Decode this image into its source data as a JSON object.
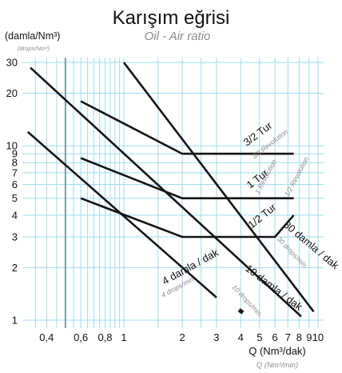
{
  "chart_data": {
    "type": "line",
    "title": "Karışım eğrisi",
    "subtitle": "Oil - Air ratio",
    "ylabel": "(damla/Nm³)",
    "ylabel_sub": "(drops/Nm³)",
    "xlabel": "Q (Nm³/dak)",
    "xlabel_sub": "Q (Nm³/min)",
    "x_scale": "log",
    "y_scale": "log",
    "xlim": [
      0.3,
      11
    ],
    "ylim": [
      0.9,
      32
    ],
    "x_ticks": [
      {
        "value": 0.4,
        "label": "0,4"
      },
      {
        "value": 0.6,
        "label": "0,6"
      },
      {
        "value": 0.8,
        "label": "0,8"
      },
      {
        "value": 1,
        "label": "1"
      },
      {
        "value": 2,
        "label": "2"
      },
      {
        "value": 3,
        "label": "3"
      },
      {
        "value": 4,
        "label": "4"
      },
      {
        "value": 5,
        "label": "5"
      },
      {
        "value": 6,
        "label": "6"
      },
      {
        "value": 7,
        "label": "7"
      },
      {
        "value": 8,
        "label": "8"
      },
      {
        "value": 9,
        "label": "9"
      },
      {
        "value": 10,
        "label": "10"
      }
    ],
    "y_ticks": [
      {
        "value": 1,
        "label": "1"
      },
      {
        "value": 2,
        "label": "2"
      },
      {
        "value": 3,
        "label": "3"
      },
      {
        "value": 4,
        "label": "4"
      },
      {
        "value": 5,
        "label": "5"
      },
      {
        "value": 6,
        "label": "6"
      },
      {
        "value": 7,
        "label": "7"
      },
      {
        "value": 8,
        "label": "8"
      },
      {
        "value": 9,
        "label": "9"
      },
      {
        "value": 10,
        "label": "10"
      },
      {
        "value": 20,
        "label": "20"
      },
      {
        "value": 30,
        "label": "30"
      }
    ],
    "x_minor_gridlines": [
      0.35,
      0.45,
      0.55,
      0.65,
      0.7,
      0.75,
      0.85,
      0.9,
      0.95,
      1.5,
      2.5
    ],
    "highlight_gridline_x": 0.5,
    "grid": true,
    "series": [
      {
        "name": "4 damla / dak",
        "name_sub": "4 drops/min.",
        "x": [
          0.32,
          3
        ],
        "y": [
          12,
          1.35
        ]
      },
      {
        "name": "10 damla / dak",
        "name_sub": "10 drops/min.",
        "x": [
          0.33,
          8.2
        ],
        "y": [
          28,
          1.05
        ]
      },
      {
        "name": "30 damla / dak",
        "name_sub": "30 drops/min.",
        "x": [
          1,
          9.5
        ],
        "y": [
          30,
          1.12
        ]
      },
      {
        "name": "3/2 Tur",
        "name_sub": "3/2 Revolution",
        "x": [
          0.6,
          2,
          7.5
        ],
        "y": [
          18,
          9,
          9
        ]
      },
      {
        "name": "1 Tur",
        "name_sub": "1 Revolution",
        "x": [
          0.6,
          2,
          6,
          7.5
        ],
        "y": [
          8.5,
          5,
          5,
          5
        ]
      },
      {
        "name": "1/2 Tur",
        "name_sub": "1/2 Revolution",
        "x": [
          0.6,
          2,
          6,
          7.5
        ],
        "y": [
          5,
          3,
          3,
          4
        ]
      }
    ]
  }
}
